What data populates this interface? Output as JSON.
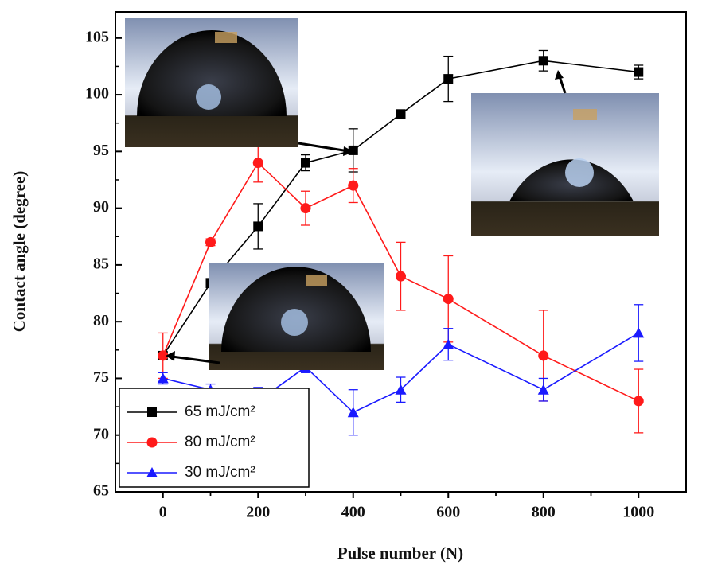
{
  "chart_data": {
    "type": "line",
    "x_label": "Pulse number (N)",
    "y_label": "Contact angle (degree)",
    "x": [
      0,
      100,
      200,
      300,
      400,
      500,
      600,
      800,
      1000
    ],
    "series": [
      {
        "name": "65 mJ/cm²",
        "color": "#000000",
        "marker": "square",
        "values": [
          77,
          83.4,
          88.4,
          94,
          95.1,
          98.3,
          101.4,
          103,
          102
        ],
        "errors": [
          0.3,
          0.4,
          2,
          0.7,
          1.9,
          0.2,
          2,
          0.9,
          0.6
        ]
      },
      {
        "name": "80 mJ/cm²",
        "color": "#ff1a1a",
        "marker": "circle",
        "values": [
          77,
          87,
          94,
          90,
          92,
          84,
          82,
          77,
          73
        ],
        "errors": [
          2,
          0.3,
          1.7,
          1.5,
          1.5,
          3,
          3.8,
          4,
          2.8
        ]
      },
      {
        "name": "30 mJ/cm²",
        "color": "#1a1aff",
        "marker": "triangle",
        "values": [
          75,
          74,
          73,
          76,
          72,
          74,
          78,
          74,
          79
        ],
        "errors": [
          0.5,
          0.5,
          1.2,
          0.5,
          2,
          1.1,
          1.4,
          1,
          2.5
        ]
      }
    ],
    "xlim": [
      -100,
      1100
    ],
    "xticks": [
      0,
      200,
      400,
      600,
      800,
      1000
    ],
    "ylim": [
      65,
      107.3
    ],
    "yticks": [
      65,
      70,
      75,
      80,
      85,
      90,
      95,
      100,
      105
    ],
    "legend": "lower left"
  }
}
